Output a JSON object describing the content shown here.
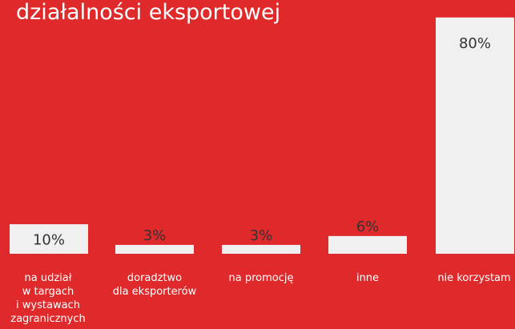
{
  "colors": {
    "background": "#e0292a",
    "bar": "#f0f0f0",
    "bar_label": "#333333",
    "category_label": "#ffffff",
    "title": "#ffffff"
  },
  "chart_data": {
    "type": "bar",
    "title": "działalności eksportowej",
    "xlabel": "",
    "ylabel": "",
    "ylim": [
      0,
      100
    ],
    "grid": false,
    "legend": "none",
    "categories": [
      [
        "na udział",
        "w targach",
        "i wystawach",
        "zagranicznych"
      ],
      [
        "doradztwo",
        "dla eksporterów"
      ],
      [
        "na promocję"
      ],
      [
        "inne"
      ],
      [
        "nie korzystam"
      ]
    ],
    "values": [
      10,
      3,
      3,
      6,
      80
    ],
    "data_labels": [
      "10%",
      "3%",
      "3%",
      "6%",
      "80%"
    ]
  }
}
